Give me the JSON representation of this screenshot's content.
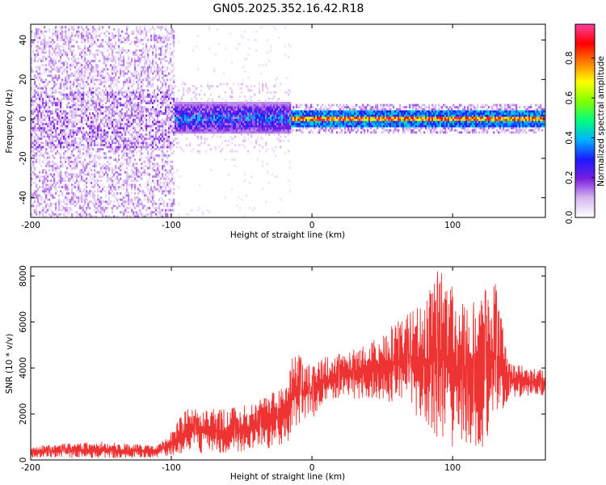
{
  "title": "GN05.2025.352.16.42.R18",
  "chart_data": [
    {
      "type": "heatmap",
      "title": "GN05.2025.352.16.42.R18",
      "xlabel": "Height of straight line (km)",
      "ylabel": "Frequency (Hz)",
      "xlim": [
        -200,
        166
      ],
      "ylim": [
        -50,
        48
      ],
      "xticks": [
        -200,
        -100,
        0,
        100
      ],
      "xtick_labels": [
        "-200",
        "-100",
        "0",
        "100"
      ],
      "yticks": [
        -40,
        -20,
        0,
        20,
        40
      ],
      "ytick_labels": [
        "-40",
        "-20",
        "0",
        "20",
        "40"
      ],
      "colorbar": {
        "label": "Normalized spectral amplitude",
        "range": [
          0,
          0.97
        ],
        "ticks": [
          0,
          0.2,
          0.4,
          0.6,
          0.8
        ],
        "tick_labels": [
          "0.0",
          "0.2",
          "0.4",
          "0.6",
          "0.8"
        ],
        "colormap": [
          "#ffffff",
          "#d8b8f0",
          "#7a1fe0",
          "#1a1aff",
          "#00b0ff",
          "#00ff80",
          "#80ff00",
          "#ffff00",
          "#ff8000",
          "#ff0000",
          "#ff40a0"
        ]
      },
      "regions": [
        {
          "x_range": [
            -200,
            -97
          ],
          "freq_spread_hz": 50,
          "amplitude": 0.05,
          "description": "broadband noise"
        },
        {
          "x_range": [
            -97,
            -15
          ],
          "freq_spread_hz": 8,
          "amplitude": 0.35,
          "description": "noisy band near 0 Hz"
        },
        {
          "x_range": [
            -15,
            166
          ],
          "freq_spread_hz": 3,
          "amplitude": 0.9,
          "description": "narrow peak near 0 Hz"
        }
      ]
    },
    {
      "type": "line",
      "xlabel": "Height of straight line (km)",
      "ylabel": "SNR (10 * v/v)",
      "xlim": [
        -200,
        166
      ],
      "ylim": [
        0,
        8400
      ],
      "xticks": [
        -200,
        -100,
        0,
        100
      ],
      "xtick_labels": [
        "-200",
        "-100",
        "0",
        "100"
      ],
      "yticks": [
        0,
        2000,
        4000,
        6000,
        8000
      ],
      "ytick_labels": [
        "0",
        "2000",
        "4000",
        "6000",
        "8000"
      ],
      "line_color": "#ee3333",
      "series": [
        {
          "name": "SNR envelope",
          "x": [
            -200,
            -150,
            -110,
            -100,
            -90,
            -60,
            -40,
            -20,
            -15,
            -10,
            0,
            10,
            20,
            40,
            60,
            80,
            90,
            100,
            110,
            120,
            130,
            140,
            166
          ],
          "min": [
            100,
            80,
            100,
            200,
            300,
            300,
            400,
            600,
            900,
            1500,
            1800,
            2400,
            2700,
            2600,
            2500,
            1500,
            800,
            500,
            300,
            400,
            1500,
            2700,
            2800
          ],
          "max": [
            600,
            800,
            600,
            1200,
            2200,
            2200,
            2500,
            3200,
            4400,
            4600,
            4000,
            4500,
            4600,
            5000,
            6000,
            6800,
            8300,
            7500,
            6500,
            7200,
            7800,
            4200,
            3900
          ]
        }
      ]
    }
  ]
}
